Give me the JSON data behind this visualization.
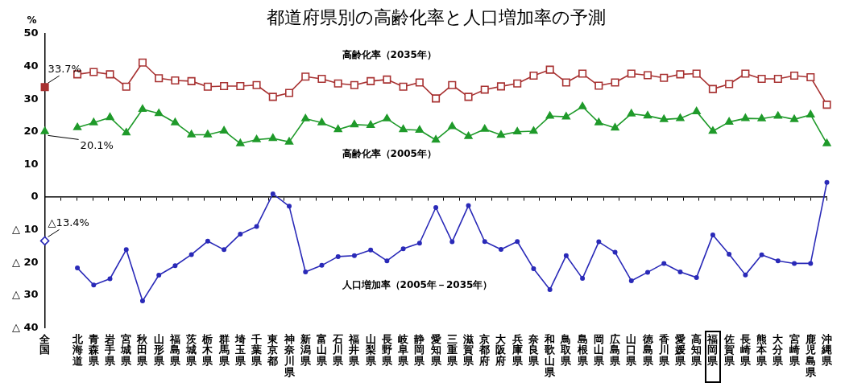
{
  "chart_data": {
    "type": "line",
    "title": "都道府県別の高齢化率と人口増加率の予測",
    "ylabel": "%",
    "categories": [
      "全国",
      null,
      "北海道",
      "青森県",
      "岩手県",
      "宮城県",
      "秋田県",
      "山形県",
      "福島県",
      "茨城県",
      "栃木県",
      "群馬県",
      "埼玉県",
      "千葉県",
      "東京都",
      "神奈川県",
      "新潟県",
      "富山県",
      "石川県",
      "福井県",
      "山梨県",
      "長野県",
      "岐阜県",
      "静岡県",
      "愛知県",
      "三重県",
      "滋賀県",
      "京都府",
      "大阪府",
      "兵庫県",
      "奈良県",
      "和歌山県",
      "鳥取県",
      "島根県",
      "岡山県",
      "広島県",
      "山口県",
      "徳島県",
      "香川県",
      "愛媛県",
      "高知県",
      "福岡県",
      "佐賀県",
      "長崎県",
      "熊本県",
      "大分県",
      "宮崎県",
      "鹿児島県",
      "沖縄県"
    ],
    "series": [
      {
        "name": "高齢化率（2035年）",
        "color": "#a83232",
        "marker": "square",
        "values": [
          33.7,
          null,
          37.6,
          38.3,
          37.6,
          33.8,
          41.2,
          36.4,
          35.7,
          35.5,
          33.8,
          34.0,
          34.0,
          34.3,
          30.7,
          31.9,
          36.9,
          36.2,
          34.8,
          34.3,
          35.5,
          36.0,
          33.8,
          35.1,
          30.2,
          34.3,
          30.7,
          32.9,
          33.9,
          34.8,
          37.2,
          39.0,
          35.1,
          37.8,
          34.1,
          35.1,
          37.8,
          37.3,
          36.5,
          37.6,
          37.8,
          33.1,
          34.6,
          37.8,
          36.2,
          36.2,
          37.2,
          36.7,
          28.3
        ]
      },
      {
        "name": "高齢化率（2005年）",
        "color": "#1f9a2a",
        "marker": "triangle",
        "values": [
          20.1,
          null,
          21.3,
          22.8,
          24.4,
          19.7,
          26.9,
          25.6,
          22.8,
          19.1,
          19.1,
          20.3,
          16.4,
          17.6,
          18.0,
          16.9,
          24.0,
          22.8,
          20.7,
          22.2,
          22.0,
          24.0,
          20.7,
          20.5,
          17.5,
          21.6,
          18.6,
          20.8,
          19.0,
          20.0,
          20.2,
          24.8,
          24.6,
          27.7,
          22.8,
          21.2,
          25.5,
          24.9,
          23.8,
          24.1,
          26.2,
          20.2,
          23.0,
          24.1,
          24.0,
          24.8,
          23.8,
          25.2,
          16.4
        ]
      },
      {
        "name": "人口増加率（2005年－2035年）",
        "color": "#2a2ab8",
        "marker": "circle",
        "values": [
          -13.4,
          null,
          -21.7,
          -26.9,
          -25.0,
          -16.1,
          -31.8,
          -23.9,
          -21.0,
          -17.6,
          -13.5,
          -16.1,
          -11.3,
          -9.0,
          1.0,
          -2.8,
          -22.9,
          -20.9,
          -18.2,
          -17.9,
          -16.2,
          -19.5,
          -15.8,
          -14.1,
          -3.2,
          -13.7,
          -2.6,
          -13.6,
          -16.0,
          -13.6,
          -21.9,
          -28.3,
          -17.9,
          -24.9,
          -13.7,
          -16.9,
          -25.6,
          -23.0,
          -20.3,
          -22.9,
          -24.6,
          -11.6,
          -17.5,
          -23.8,
          -17.7,
          -19.5,
          -20.3,
          -20.3,
          4.5
        ]
      }
    ],
    "ylim": [
      -40,
      50
    ],
    "yticks": [
      {
        "value": -40,
        "label": "△ 40"
      },
      {
        "value": -30,
        "label": "△ 30"
      },
      {
        "value": -20,
        "label": "△ 20"
      },
      {
        "value": -10,
        "label": "△ 10"
      },
      0,
      10,
      20,
      30,
      40,
      50
    ],
    "grid": false,
    "legend": false,
    "ref_lines": [
      {
        "axis": "y",
        "value": 0,
        "color": "#000000"
      }
    ],
    "annotations": [
      {
        "text": "33.7%",
        "x": "全国",
        "y": 33.7
      },
      {
        "text": "20.1%",
        "x": "全国",
        "y": 20.1
      },
      {
        "text": "△13.4%",
        "x": "全国",
        "y": -13.4
      }
    ]
  }
}
